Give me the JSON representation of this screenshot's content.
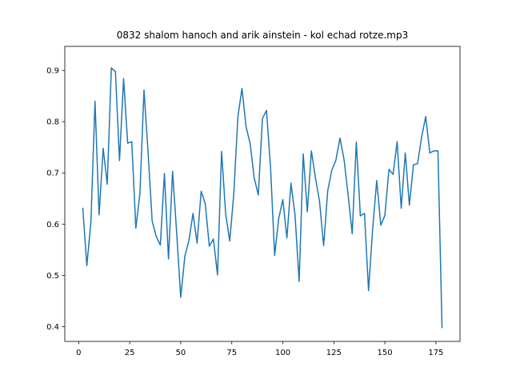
{
  "chart_data": {
    "type": "line",
    "title": "0832 shalom hanoch and arik ainstein - kol echad rotze.mp3",
    "x": [
      2,
      4,
      6,
      8,
      10,
      12,
      14,
      16,
      18,
      20,
      22,
      24,
      26,
      28,
      30,
      32,
      34,
      36,
      38,
      40,
      42,
      44,
      46,
      48,
      50,
      52,
      54,
      56,
      58,
      60,
      62,
      64,
      66,
      68,
      70,
      72,
      74,
      76,
      78,
      80,
      82,
      84,
      86,
      88,
      90,
      92,
      94,
      96,
      98,
      100,
      102,
      104,
      106,
      108,
      110,
      112,
      114,
      116,
      118,
      120,
      122,
      124,
      126,
      128,
      130,
      132,
      134,
      136,
      138,
      140,
      142,
      144,
      146,
      148,
      150,
      152,
      154,
      156,
      158,
      160,
      162,
      164,
      166,
      168,
      170,
      172,
      174,
      176,
      178
    ],
    "series": [
      {
        "color": "#1f77b4",
        "values": [
          0.632,
          0.519,
          0.605,
          0.84,
          0.618,
          0.748,
          0.678,
          0.905,
          0.898,
          0.724,
          0.884,
          0.758,
          0.761,
          0.592,
          0.66,
          0.862,
          0.74,
          0.606,
          0.576,
          0.559,
          0.699,
          0.532,
          0.703,
          0.583,
          0.457,
          0.537,
          0.568,
          0.621,
          0.563,
          0.664,
          0.64,
          0.557,
          0.571,
          0.501,
          0.742,
          0.62,
          0.567,
          0.66,
          0.81,
          0.865,
          0.79,
          0.757,
          0.69,
          0.657,
          0.806,
          0.822,
          0.71,
          0.539,
          0.611,
          0.648,
          0.573,
          0.68,
          0.617,
          0.488,
          0.737,
          0.624,
          0.743,
          0.69,
          0.644,
          0.558,
          0.665,
          0.705,
          0.725,
          0.768,
          0.726,
          0.657,
          0.581,
          0.76,
          0.616,
          0.621,
          0.47,
          0.59,
          0.685,
          0.598,
          0.617,
          0.707,
          0.697,
          0.761,
          0.631,
          0.739,
          0.637,
          0.716,
          0.718,
          0.77,
          0.81,
          0.739,
          0.743,
          0.743,
          0.397
        ]
      }
    ],
    "xlim": [
      -6.8,
      186.8
    ],
    "ylim": [
      0.371,
      0.947
    ],
    "xticks": [
      0,
      25,
      50,
      75,
      100,
      125,
      150,
      175
    ],
    "yticks": [
      0.4,
      0.5,
      0.6,
      0.7,
      0.8,
      0.9
    ]
  }
}
